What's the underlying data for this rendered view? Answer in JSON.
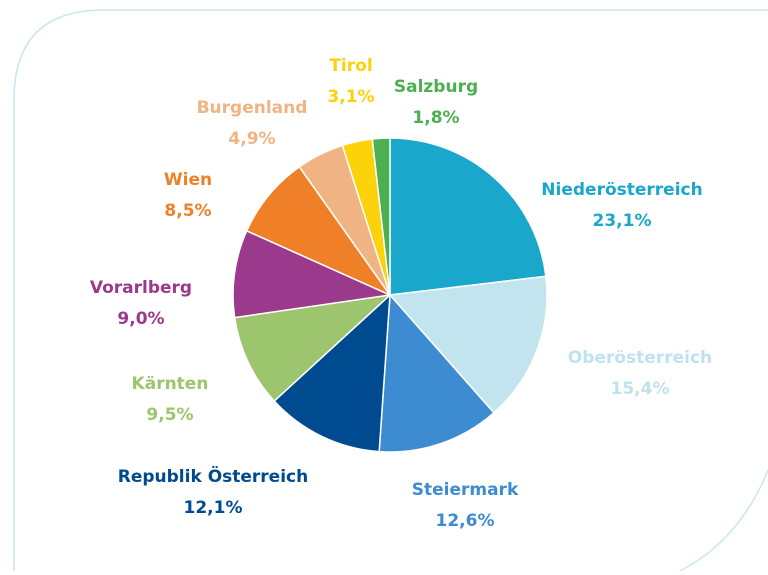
{
  "chart_data": {
    "type": "pie",
    "categories": [
      "Niederösterreich",
      "Oberösterreich",
      "Steiermark",
      "Republik Österreich",
      "Kärnten",
      "Vorarlberg",
      "Wien",
      "Burgenland",
      "Tirol",
      "Salzburg"
    ],
    "values": [
      23.1,
      15.4,
      12.6,
      12.1,
      9.5,
      9.0,
      8.5,
      4.9,
      3.1,
      1.8
    ],
    "value_labels": [
      "23,1%",
      "15,4%",
      "12,6%",
      "12,1%",
      "9,5%",
      "9,0%",
      "8,5%",
      "4,9%",
      "3,1%",
      "1,8%"
    ],
    "colors": [
      "#1aa7cc",
      "#c2e4ef",
      "#3d8bd0",
      "#004a8f",
      "#9dc56e",
      "#9b3a8c",
      "#ef8027",
      "#f0b484",
      "#fcd20a",
      "#4caf50"
    ]
  }
}
